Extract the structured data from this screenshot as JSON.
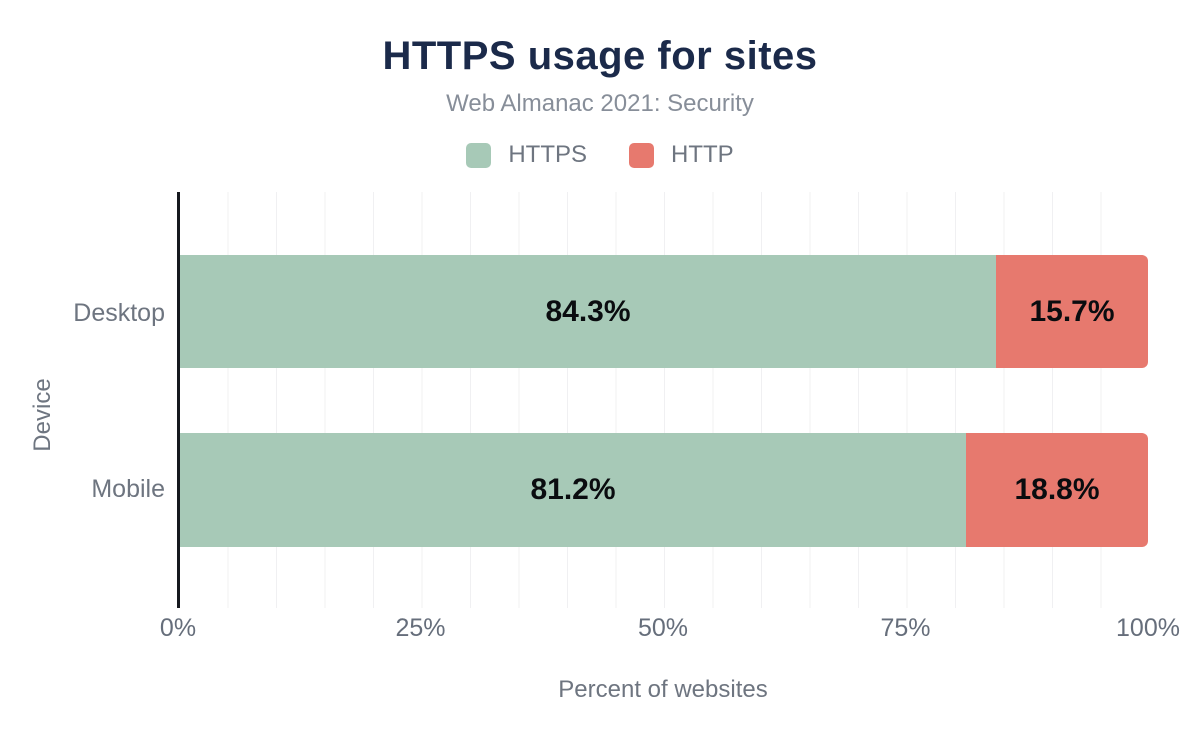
{
  "chart": {
    "title": "HTTPS usage for sites",
    "subtitle": "Web Almanac 2021: Security",
    "legend": [
      {
        "label": "HTTPS",
        "color": "#a7c9b7"
      },
      {
        "label": "HTTP",
        "color": "#e7796e"
      }
    ],
    "bars": [
      {
        "category": "Desktop",
        "segments": [
          {
            "series": "HTTPS",
            "label": "84.3%"
          },
          {
            "series": "HTTP",
            "label": "15.7%"
          }
        ]
      },
      {
        "category": "Mobile",
        "segments": [
          {
            "series": "HTTPS",
            "label": "81.2%"
          },
          {
            "series": "HTTP",
            "label": "18.8%"
          }
        ]
      }
    ],
    "x_axis": {
      "label": "Percent of websites",
      "ticks": [
        "0%",
        "25%",
        "50%",
        "75%",
        "100%"
      ]
    },
    "y_axis": {
      "label": "Device",
      "categories": [
        "Desktop",
        "Mobile"
      ]
    },
    "colors": {
      "title": "#1b2a4a",
      "muted_text": "#6e7580",
      "subtitle_text": "#878e99",
      "value_text": "#0a0c0f",
      "axis_line": "#15181e",
      "gridline": "#f0f0f2"
    }
  },
  "chart_data": {
    "type": "bar",
    "orientation": "horizontal",
    "stacked": true,
    "categories": [
      "Desktop",
      "Mobile"
    ],
    "series": [
      {
        "name": "HTTPS",
        "values": [
          84.3,
          81.2
        ],
        "color": "#a7c9b7"
      },
      {
        "name": "HTTP",
        "values": [
          15.7,
          18.8
        ],
        "color": "#e7796e"
      }
    ],
    "title": "HTTPS usage for sites",
    "subtitle": "Web Almanac 2021: Security",
    "xlabel": "Percent of websites",
    "ylabel": "Device",
    "xlim": [
      0,
      100
    ],
    "xticks": [
      0,
      25,
      50,
      75,
      100
    ],
    "grid": "vertical minor gridlines every 5%",
    "legend_position": "top",
    "data_labels": "inside segments, bold black, percent format"
  }
}
